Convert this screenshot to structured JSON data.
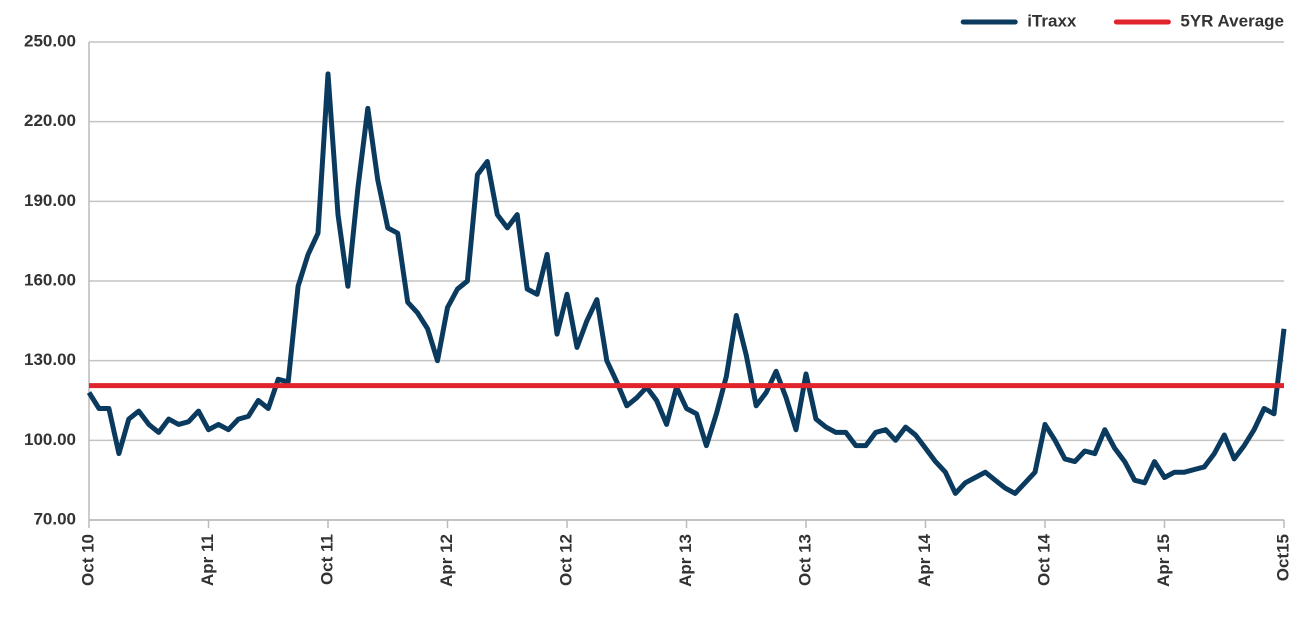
{
  "chart_data": {
    "type": "line",
    "categories": [
      "Oct 10",
      null,
      null,
      null,
      null,
      null,
      null,
      null,
      null,
      null,
      null,
      null,
      "Apr 11",
      null,
      null,
      null,
      null,
      null,
      null,
      null,
      null,
      null,
      null,
      null,
      "Oct 11",
      null,
      null,
      null,
      null,
      null,
      null,
      null,
      null,
      null,
      null,
      null,
      "Apr 12",
      null,
      null,
      null,
      null,
      null,
      null,
      null,
      null,
      null,
      null,
      null,
      "Oct 12",
      null,
      null,
      null,
      null,
      null,
      null,
      null,
      null,
      null,
      null,
      null,
      "Apr 13",
      null,
      null,
      null,
      null,
      null,
      null,
      null,
      null,
      null,
      null,
      null,
      "Oct 13",
      null,
      null,
      null,
      null,
      null,
      null,
      null,
      null,
      null,
      null,
      null,
      "Apr 14",
      null,
      null,
      null,
      null,
      null,
      null,
      null,
      null,
      null,
      null,
      null,
      "Oct 14",
      null,
      null,
      null,
      null,
      null,
      null,
      null,
      null,
      null,
      null,
      null,
      "Apr 15",
      null,
      null,
      null,
      null,
      null,
      null,
      null,
      null,
      null,
      null,
      null,
      "Oct15"
    ],
    "series": [
      {
        "name": "iTraxx",
        "color": "#0b3a5f",
        "values": [
          118,
          112,
          112,
          95,
          108,
          111,
          106,
          103,
          108,
          106,
          107,
          111,
          104,
          106,
          104,
          108,
          109,
          115,
          112,
          123,
          122,
          158,
          170,
          178,
          238,
          185,
          158,
          195,
          225,
          198,
          180,
          178,
          152,
          148,
          142,
          130,
          150,
          157,
          160,
          200,
          205,
          185,
          180,
          185,
          157,
          155,
          170,
          140,
          155,
          135,
          145,
          153,
          130,
          122,
          113,
          116,
          120,
          115,
          106,
          120,
          112,
          110,
          98,
          110,
          124,
          147,
          132,
          113,
          118,
          126,
          116,
          104,
          125,
          108,
          105,
          103,
          103,
          98,
          98,
          103,
          104,
          100,
          105,
          102,
          97,
          92,
          88,
          80,
          84,
          86,
          88,
          85,
          82,
          80,
          84,
          88,
          106,
          100,
          93,
          92,
          96,
          95,
          104,
          97,
          92,
          85,
          84,
          92,
          86,
          88,
          88,
          89,
          90,
          95,
          102,
          93,
          98,
          104,
          112,
          110,
          142
        ]
      },
      {
        "name": "5YR Average",
        "color": "#e1232b",
        "values": [
          120.6,
          120.6,
          120.6,
          120.6,
          120.6,
          120.6,
          120.6,
          120.6,
          120.6,
          120.6,
          120.6,
          120.6,
          120.6,
          120.6,
          120.6,
          120.6,
          120.6,
          120.6,
          120.6,
          120.6,
          120.6,
          120.6,
          120.6,
          120.6,
          120.6,
          120.6,
          120.6,
          120.6,
          120.6,
          120.6,
          120.6,
          120.6,
          120.6,
          120.6,
          120.6,
          120.6,
          120.6,
          120.6,
          120.6,
          120.6,
          120.6,
          120.6,
          120.6,
          120.6,
          120.6,
          120.6,
          120.6,
          120.6,
          120.6,
          120.6,
          120.6,
          120.6,
          120.6,
          120.6,
          120.6,
          120.6,
          120.6,
          120.6,
          120.6,
          120.6,
          120.6,
          120.6,
          120.6,
          120.6,
          120.6,
          120.6,
          120.6,
          120.6,
          120.6,
          120.6,
          120.6,
          120.6,
          120.6,
          120.6,
          120.6,
          120.6,
          120.6,
          120.6,
          120.6,
          120.6,
          120.6,
          120.6,
          120.6,
          120.6,
          120.6,
          120.6,
          120.6,
          120.6,
          120.6,
          120.6,
          120.6,
          120.6,
          120.6,
          120.6,
          120.6,
          120.6,
          120.6,
          120.6,
          120.6,
          120.6,
          120.6,
          120.6,
          120.6,
          120.6,
          120.6,
          120.6,
          120.6,
          120.6,
          120.6,
          120.6,
          120.6,
          120.6,
          120.6,
          120.6,
          120.6,
          120.6,
          120.6,
          120.6,
          120.6,
          120.6,
          120.6
        ]
      }
    ],
    "ylim": [
      70,
      250
    ],
    "yticks": [
      {
        "value": 70,
        "label": "70.00"
      },
      {
        "value": 100,
        "label": "100.00"
      },
      {
        "value": 130,
        "label": "130.00"
      },
      {
        "value": 160,
        "label": "160.00"
      },
      {
        "value": 190,
        "label": "190.00"
      },
      {
        "value": 220,
        "label": "220.00"
      },
      {
        "value": 250,
        "label": "250.00"
      }
    ],
    "grid": true,
    "legend": "top-right"
  }
}
